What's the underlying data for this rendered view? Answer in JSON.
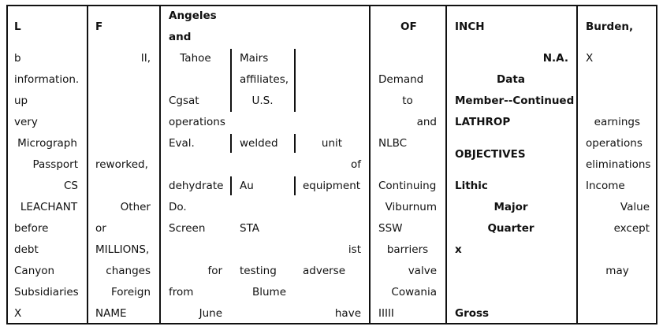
{
  "header": {
    "c1": "L",
    "c2": "F",
    "c3_line1": "Angeles",
    "c3_line2": "and",
    "c4": "OF",
    "c5": "INCH",
    "c6": "Burden,"
  },
  "col1": [
    "b",
    "information.",
    "up",
    "very",
    "Micrograph",
    "Passport",
    "CS",
    "LEACHANT",
    "before",
    "debt",
    "Canyon",
    "Subsidiaries",
    "X"
  ],
  "col2": [
    "II,",
    "reworked,",
    "Other",
    "or",
    "MILLIONS,",
    "changes",
    "Foreign",
    "NAME"
  ],
  "col3a": [
    "Tahoe",
    "Cgsat",
    "operations",
    "Eval.",
    "dehydrate",
    "Do.",
    "Screen",
    "for",
    "from",
    "June"
  ],
  "col3b": [
    "Mairs",
    "affiliates,",
    "U.S.",
    "welded",
    "Au",
    "STA",
    "testing",
    "Blume"
  ],
  "col3c": [
    "unit",
    "of",
    "equipment",
    "ist",
    "adverse",
    "have"
  ],
  "col4": [
    "Demand",
    "to",
    "and",
    "NLBC",
    "Continuing",
    "Viburnum",
    "SSW",
    "barriers",
    "valve",
    "Cowania",
    "IIIII"
  ],
  "col5": [
    "N.A.",
    "Data",
    "Member--Continued",
    "LATHROP",
    "OBJECTIVES",
    "Lithic",
    "Major",
    "Quarter",
    "x",
    "Gross"
  ],
  "col6": [
    "X",
    "earnings",
    "operations",
    "eliminations",
    "Income",
    "Value",
    "except",
    "may"
  ]
}
